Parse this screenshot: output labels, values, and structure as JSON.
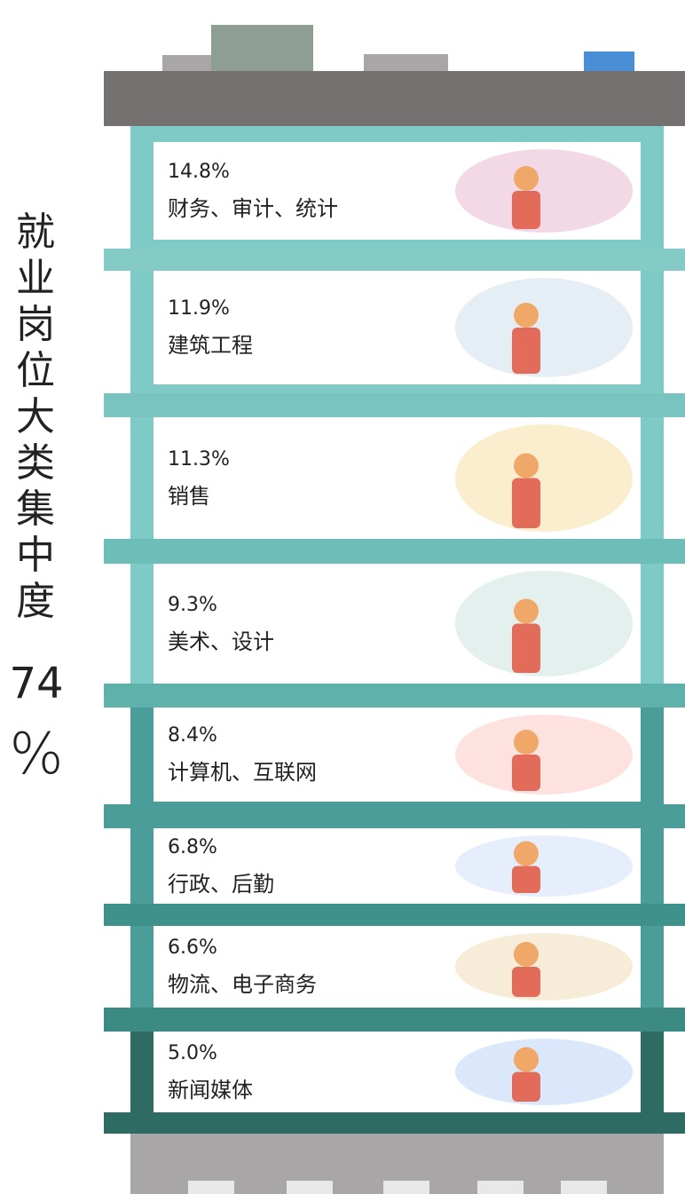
{
  "title": {
    "text": "就业岗位大类集中度",
    "value": "74",
    "unit": "%"
  },
  "floors": [
    {
      "percent": "14.8%",
      "label": "财务、审计、统计"
    },
    {
      "percent": "11.9%",
      "label": "建筑工程"
    },
    {
      "percent": "11.3%",
      "label": "销售"
    },
    {
      "percent": "9.3%",
      "label": "美术、设计"
    },
    {
      "percent": "8.4%",
      "label": "计算机、互联网"
    },
    {
      "percent": "6.8%",
      "label": "行政、后勤"
    },
    {
      "percent": "6.6%",
      "label": "物流、电子商务"
    },
    {
      "percent": "5.0%",
      "label": "新闻媒体"
    }
  ]
}
